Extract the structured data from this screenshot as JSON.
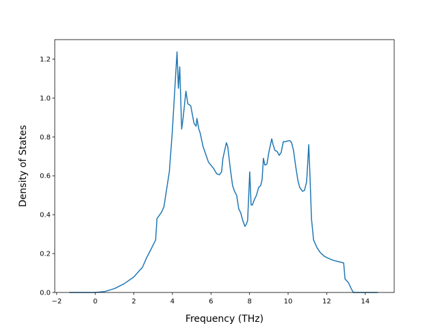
{
  "chart_data": {
    "type": "line",
    "xlabel": "Frequency (THz)",
    "ylabel": "Density of States",
    "series": [
      {
        "color": "#1f77b4",
        "x": [
          -1.35,
          0,
          0.5,
          1.0,
          1.5,
          2.0,
          2.45,
          2.67,
          2.88,
          3.13,
          3.2,
          3.42,
          3.56,
          3.84,
          3.99,
          4.24,
          4.31,
          4.38,
          4.48,
          4.56,
          4.7,
          4.8,
          4.95,
          5.12,
          5.23,
          5.27,
          5.37,
          5.44,
          5.59,
          5.73,
          5.87,
          6.12,
          6.3,
          6.44,
          6.55,
          6.62,
          6.8,
          6.87,
          7.01,
          7.12,
          7.22,
          7.33,
          7.44,
          7.54,
          7.65,
          7.76,
          7.83,
          7.9,
          8.01,
          8.08,
          8.15,
          8.26,
          8.36,
          8.47,
          8.58,
          8.65,
          8.72,
          8.79,
          8.9,
          9.0,
          9.15,
          9.22,
          9.32,
          9.43,
          9.54,
          9.64,
          9.75,
          9.86,
          10.0,
          10.1,
          10.18,
          10.28,
          10.39,
          10.5,
          10.6,
          10.75,
          10.85,
          10.96,
          11.07,
          11.14,
          11.21,
          11.32,
          11.5,
          11.67,
          11.89,
          12.1,
          12.35,
          12.63,
          12.88,
          12.95,
          13.13,
          13.27,
          13.38,
          14.66
        ],
        "values": [
          0,
          0,
          0.005,
          0.02,
          0.045,
          0.08,
          0.13,
          0.18,
          0.22,
          0.27,
          0.38,
          0.41,
          0.44,
          0.62,
          0.82,
          1.237,
          1.05,
          1.16,
          0.84,
          0.9,
          1.035,
          0.97,
          0.96,
          0.87,
          0.855,
          0.895,
          0.84,
          0.82,
          0.75,
          0.71,
          0.67,
          0.64,
          0.61,
          0.605,
          0.62,
          0.69,
          0.77,
          0.75,
          0.63,
          0.55,
          0.52,
          0.5,
          0.43,
          0.41,
          0.37,
          0.34,
          0.35,
          0.37,
          0.62,
          0.45,
          0.45,
          0.48,
          0.5,
          0.54,
          0.55,
          0.58,
          0.69,
          0.655,
          0.66,
          0.72,
          0.79,
          0.76,
          0.73,
          0.725,
          0.705,
          0.72,
          0.775,
          0.775,
          0.78,
          0.78,
          0.77,
          0.73,
          0.65,
          0.58,
          0.54,
          0.52,
          0.525,
          0.57,
          0.76,
          0.58,
          0.38,
          0.27,
          0.23,
          0.205,
          0.185,
          0.175,
          0.165,
          0.158,
          0.152,
          0.07,
          0.05,
          0.02,
          0,
          0
        ]
      }
    ],
    "xlim": [
      -2.1,
      15.5
    ],
    "ylim": [
      0,
      1.3
    ],
    "xticks": [
      {
        "value": -2,
        "label": "−2"
      },
      0,
      2,
      4,
      6,
      8,
      10,
      12,
      14
    ],
    "yticks": [
      {
        "value": 0,
        "label": "0.0"
      },
      0.2,
      0.4,
      0.6,
      0.8,
      {
        "value": 1,
        "label": "1.0"
      },
      1.2
    ]
  }
}
